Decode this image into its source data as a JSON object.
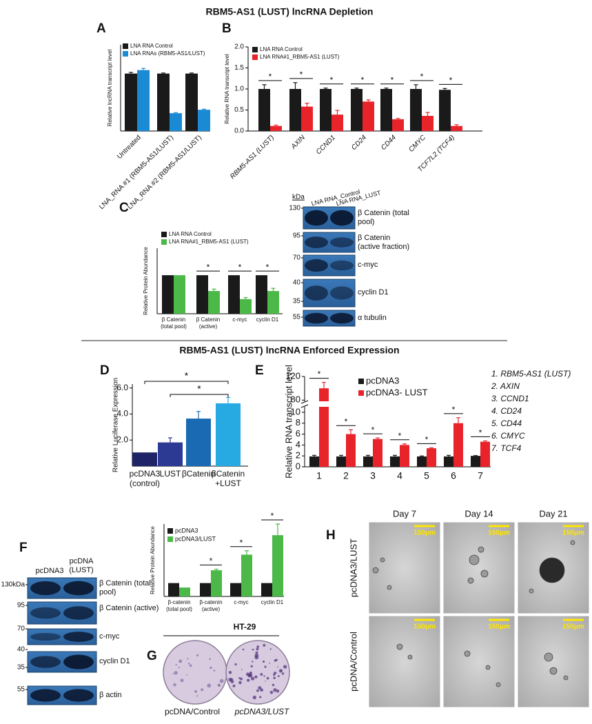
{
  "figure": {
    "titles": [
      "RBM5-AS1 (LUST) lncRNA Depletion",
      "RBM5-AS1 (LUST) lncRNA Enforced Expression"
    ],
    "panel_labels": [
      "A",
      "B",
      "C",
      "D",
      "E",
      "F",
      "G",
      "H"
    ]
  },
  "chart_data": [
    {
      "type": "bar",
      "ylabel": "Relative lncRNA transcript level",
      "categories": [
        "Untreated",
        "LNA_RNA #1 (RBM5-AS1/LUST)",
        "LNA_RNA #2 (RBM5-AS1/LUST)"
      ],
      "series": [
        {
          "name": "LNA RNA Control",
          "color": "#1a1a1a",
          "values": [
            1.0,
            1.0,
            1.0
          ],
          "errors": [
            0.02,
            0.01,
            0.01
          ]
        },
        {
          "name": "LNA RNAs (RBM5-AS1/LUST)",
          "color": "#1a8ad4",
          "values": [
            1.06,
            0.31,
            0.37
          ],
          "errors": [
            0.03,
            0.01,
            0.01
          ]
        }
      ],
      "ylim": [
        0,
        1.5
      ]
    },
    {
      "type": "bar",
      "ylabel": "Relative RNA transcript level",
      "categories": [
        "RBM5-AS1 (LUST)",
        "AXIN",
        "CCND1",
        "CD24",
        "CD44",
        "CMYC",
        "TCF7L2 (TCF4)"
      ],
      "series": [
        {
          "name": "LNA RNA Control",
          "color": "#1a1a1a",
          "values": [
            1.0,
            1.0,
            1.0,
            1.0,
            1.0,
            1.0,
            0.98
          ],
          "errors": [
            0.1,
            0.15,
            0.02,
            0.02,
            0.02,
            0.1,
            0.03
          ]
        },
        {
          "name": "LNA RNA#1_RBM5-AS1 (LUST)",
          "color": "#e8232a",
          "values": [
            0.12,
            0.58,
            0.39,
            0.7,
            0.28,
            0.36,
            0.12
          ],
          "errors": [
            0.02,
            0.08,
            0.1,
            0.04,
            0.02,
            0.08,
            0.03
          ]
        }
      ],
      "ylim": [
        0,
        2
      ],
      "yticks": [
        {
          "value": 0,
          "label": "0.0"
        },
        0.5,
        {
          "value": 1,
          "label": "1.0"
        },
        1.5,
        {
          "value": 2,
          "label": "2.0"
        }
      ],
      "significance": [
        "*",
        "*",
        "*",
        "*",
        "*",
        "*",
        "*"
      ]
    },
    {
      "type": "bar",
      "ylabel": "Relative Protein Abundance",
      "categories": [
        "β Catenin (total pool)",
        "β Catenin (active)",
        "c-myc",
        "cyclin D1"
      ],
      "series": [
        {
          "name": "LNA RNA Control",
          "color": "#1a1a1a",
          "values": [
            1.0,
            1.0,
            1.0,
            1.0
          ]
        },
        {
          "name": "LNA RNA#1_RBM5-AS1 (LUST)",
          "color": "#4cb848",
          "values": [
            1.0,
            0.59,
            0.38,
            0.59
          ],
          "errors": [
            null,
            0.05,
            0.04,
            0.07
          ]
        }
      ],
      "ylim": [
        0,
        1.7
      ],
      "significance": [
        null,
        "*",
        "*",
        "*"
      ]
    },
    {
      "type": "bar",
      "ylabel": "Relative Luciferase Expression",
      "categories": [
        "pcDNA3 (control)",
        "LUST",
        "βCatenin",
        "βCatenin +LUST"
      ],
      "values": [
        1.05,
        1.82,
        3.65,
        4.82
      ],
      "errors": [
        null,
        0.35,
        0.55,
        0.45
      ],
      "colors": [
        "#1e2466",
        "#2c3a94",
        "#1a6ab3",
        "#27a9e1"
      ],
      "ylim": [
        0,
        6.3
      ],
      "yticks": [
        {
          "value": 2,
          "label": "2.0"
        },
        {
          "value": 4,
          "label": "4.0"
        },
        {
          "value": 6,
          "label": "6.0"
        }
      ],
      "significance": [
        "*",
        "*"
      ]
    },
    {
      "type": "bar",
      "ylabel": "Relative RNA transcript level",
      "categories": [
        "1",
        "2",
        "3",
        "4",
        "5",
        "6",
        "7"
      ],
      "series": [
        {
          "name": "pcDNA3",
          "color": "#1a1a1a",
          "values": [
            1.9,
            1.9,
            1.9,
            1.9,
            1.9,
            1.9,
            2.0
          ],
          "errors": [
            0.2,
            0.2,
            0.2,
            0.2,
            0.1,
            0.2,
            0.05
          ]
        },
        {
          "name": "pcDNA3- LUST",
          "color": "#e8232a",
          "values": [
            100,
            6.0,
            5.1,
            4.0,
            3.4,
            8.0,
            4.6
          ],
          "errors": [
            10,
            0.8,
            0.2,
            0.2,
            0.1,
            1.0,
            0.15
          ]
        }
      ],
      "ylim": [
        0,
        120
      ],
      "ybreak": [
        11,
        78
      ],
      "yticks": [
        0,
        2,
        4,
        6,
        8,
        10,
        80,
        120
      ],
      "significance": [
        "*",
        "*",
        "*",
        "*",
        "*",
        "*",
        "*"
      ],
      "key": [
        "1. RBM5-AS1 (LUST)",
        "2. AXIN",
        "3. CCND1",
        "4. CD24",
        "5. CD44",
        "6. CMYC",
        "7. TCF4"
      ]
    },
    {
      "type": "bar",
      "ylabel": "Relative Protein Abundance",
      "categories": [
        "β-catenin (total pool)",
        "β-catenin (active)",
        "c-myc",
        "cyclin D1"
      ],
      "series": [
        {
          "name": "pcDNA3",
          "color": "#1a1a1a",
          "values": [
            1.2,
            1.2,
            1.2,
            1.2
          ]
        },
        {
          "name": "pcDNA3/LUST",
          "color": "#4cb848",
          "values": [
            0.8,
            2.35,
            3.75,
            5.5
          ],
          "errors": [
            null,
            0.1,
            0.35,
            1.0
          ]
        }
      ],
      "ylim": [
        0,
        6.5
      ],
      "significance": [
        null,
        "*",
        "*",
        "*"
      ]
    }
  ],
  "blot_c": {
    "kda": "kDa",
    "lanes": [
      "LNA RNA_Control",
      "LNA RNA_LUST"
    ],
    "rows": [
      {
        "markers": [
          "130"
        ],
        "label": "β Catenin (total pool)"
      },
      {
        "markers": [
          "95"
        ],
        "label": "β Catenin (active fraction)"
      },
      {
        "markers": [
          "70"
        ],
        "label": "c-myc"
      },
      {
        "markers": [
          "40",
          "35"
        ],
        "label": "cyclin D1"
      },
      {
        "markers": [
          "55"
        ],
        "label": "α tubulin"
      }
    ]
  },
  "blot_f": {
    "lanes": [
      "pcDNA3",
      "pcDNA (LUST)"
    ],
    "rows": [
      {
        "markers": [
          "130kDa"
        ],
        "label": "β Catenin (total pool)"
      },
      {
        "markers": [
          "95"
        ],
        "label": "β Catenin (active)"
      },
      {
        "markers": [
          "70"
        ],
        "label": "c-myc"
      },
      {
        "markers": [
          "40",
          "35"
        ],
        "label": "cyclin D1"
      },
      {
        "markers": [
          "55"
        ],
        "label": "β actin"
      }
    ]
  },
  "colony_g": {
    "title": "HT-29",
    "labels": [
      "pcDNA/Control",
      "pcDNA3/LUST"
    ]
  },
  "spheroid_h": {
    "columns": [
      "Day 7",
      "Day 14",
      "Day 21"
    ],
    "rows": [
      "pcDNA3/LUST",
      "pcDNA/Control"
    ],
    "scale": [
      [
        "150μm",
        "150μm",
        "150μm"
      ],
      [
        "150μm",
        "150μm",
        "150μm"
      ]
    ]
  }
}
